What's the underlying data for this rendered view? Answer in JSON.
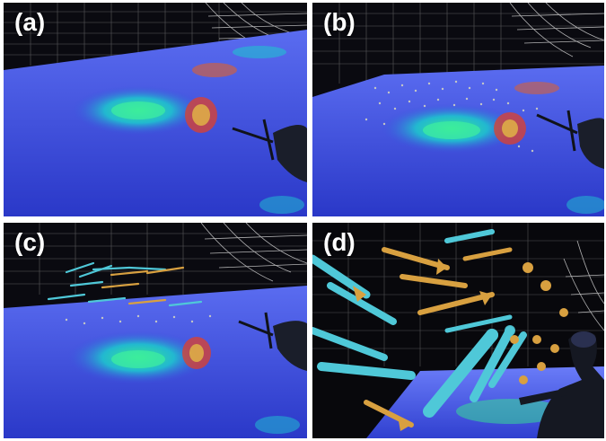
{
  "panels": [
    {
      "label": "(a)"
    },
    {
      "label": "(b)"
    },
    {
      "label": "(c)"
    },
    {
      "label": "(d)"
    }
  ],
  "colors": {
    "background": "#ffffff",
    "floor": "#3d4ce0",
    "contour_inner": "#2de0a0",
    "contour_mid": "#1fa8d8",
    "hot_spot": "#e0402a",
    "arrow_cyan": "#4fc8d8",
    "arrow_gold": "#d8a040",
    "grid": "#c8c8c8"
  }
}
